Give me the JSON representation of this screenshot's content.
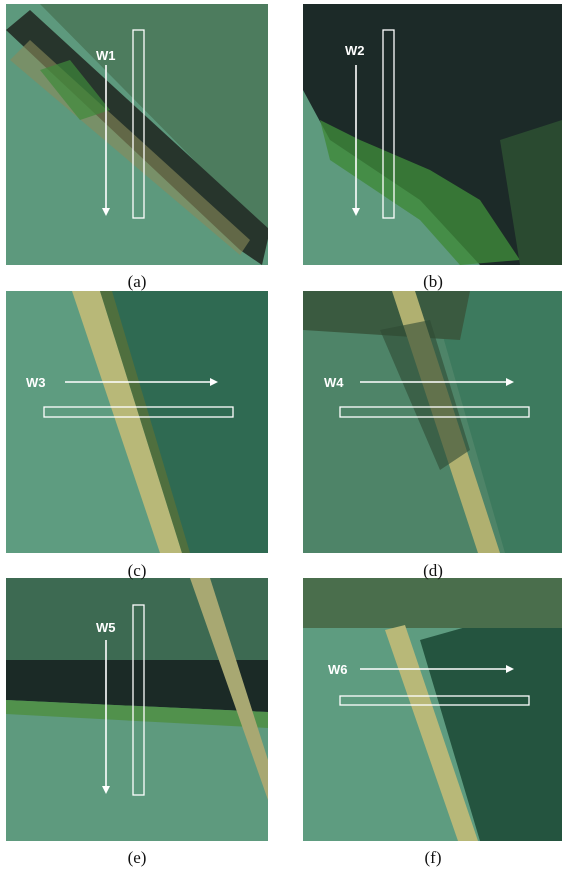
{
  "panels": [
    {
      "window": "W1",
      "caption": "(a)"
    },
    {
      "window": "W2",
      "caption": "(b)"
    },
    {
      "window": "W3",
      "caption": "(c)"
    },
    {
      "window": "W4",
      "caption": "(d)"
    },
    {
      "window": "W5",
      "caption": "(e)"
    },
    {
      "window": "W6",
      "caption": "(f)"
    }
  ]
}
